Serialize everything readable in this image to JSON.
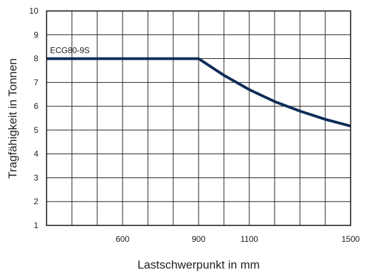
{
  "chart_data": {
    "type": "line",
    "title": "",
    "xlabel": "Lastschwerpunkt in mm",
    "ylabel": "Tragfähigkeit in Tonnen",
    "x_ticks": [
      600,
      900,
      1100,
      1500
    ],
    "y_ticks": [
      1,
      2,
      3,
      4,
      5,
      6,
      7,
      8,
      9,
      10
    ],
    "xlim": [
      300,
      1500
    ],
    "ylim": [
      1,
      10
    ],
    "grid": true,
    "legend": "none",
    "series": [
      {
        "name": "ECG80-9S",
        "color": "#0e2d57",
        "x": [
          300,
          600,
          900,
          1000,
          1100,
          1200,
          1300,
          1400,
          1500
        ],
        "y": [
          8.0,
          8.0,
          8.0,
          7.3,
          6.7,
          6.2,
          5.8,
          5.45,
          5.17
        ]
      }
    ]
  }
}
